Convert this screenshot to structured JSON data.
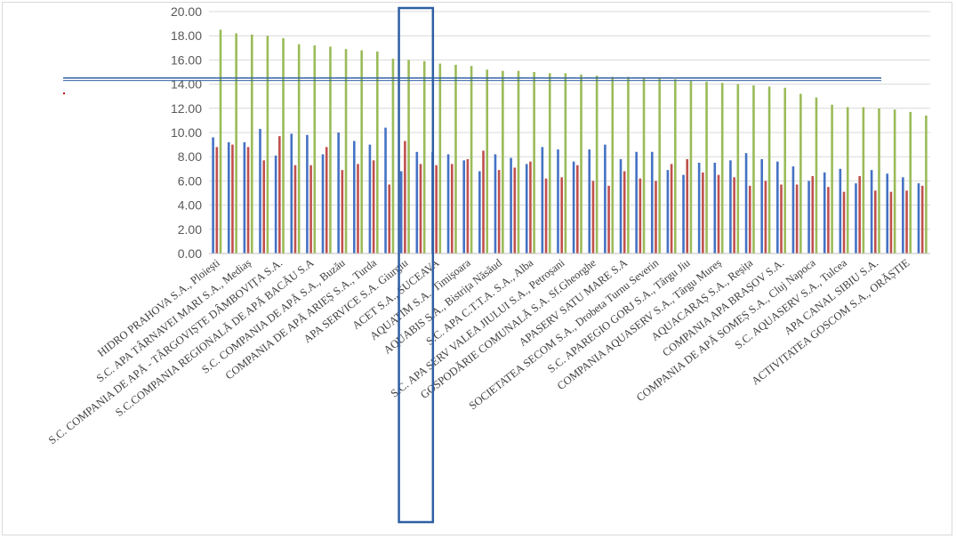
{
  "chart_data": {
    "type": "bar",
    "title": "",
    "xlabel": "",
    "ylabel": "",
    "ylim": [
      0,
      20
    ],
    "ytick_step": 2,
    "ytick_labels": [
      "0.00",
      "2.00",
      "4.00",
      "6.00",
      "8.00",
      "10.00",
      "12.00",
      "14.00",
      "16.00",
      "18.00",
      "20.00"
    ],
    "grid": true,
    "legend": "none",
    "categories": [
      "HIDRO PRAHOVA S.A., Ploiești",
      "",
      "S.C. APA TÂRNAVEI MARI S.A., Mediaș",
      "",
      "S.C. COMPANIA DE APĂ - TÂRGOVIȘTE DÂMBOVIȚA S.A.",
      "",
      "S.C.COMPANIA REGIONALĂ DE APĂ BACĂU S.A",
      "",
      "S.C. COMPANIA DE APĂ S.A., Buzău",
      "",
      "COMPANIA DE APĂ ARIEȘ S.A., Turda",
      "",
      "APA SERVICE S.A. Giurgiu",
      "",
      "ACET S.A., SUCEAVA",
      "",
      "AQUATIM S.A., Timișoara",
      "",
      "AQUABIS S.A., Bistrița Năsăud",
      "",
      "S.C. APA C.T.T.A. S.A., Alba",
      "",
      "S.C. APA SERV VALEA JIULUI S.A., Petroșani",
      "",
      "GOSPODĂRIE COMUNALĂ S.A. Sf.Gheorghe",
      "",
      "APASERV SATU MARE S.A",
      "",
      "SOCIETATEA SECOM S.A., Drobeta Turnu Severin",
      "",
      "S.C. APAREGIO GORJ S.A., Târgu Jiu",
      "",
      "COMPANIA AQUASERV S.A., Târgu Mureș",
      "",
      "AQUACARAȘ S.A., Reșița",
      "",
      "COMPANIA APA BRAȘOV S.A.",
      "",
      "COMPANIA DE APĂ SOMEȘ S.A., Cluj Napoca",
      "",
      "S.C. AQUASERV S.A., Tulcea",
      "",
      "APA CANAL SIBIU S.A.",
      "",
      "ACTIVITATEA GOSCOM S.A., ORĂȘTIE",
      ""
    ],
    "series": [
      {
        "color": "#4472c4",
        "values": [
          9.6,
          9.2,
          9.2,
          10.3,
          8.1,
          9.9,
          9.8,
          8.2,
          10.0,
          9.3,
          9.0,
          10.4,
          6.8,
          8.4,
          8.4,
          8.2,
          7.7,
          6.8,
          8.2,
          7.9,
          7.4,
          8.8,
          8.6,
          7.6,
          8.6,
          9.0,
          7.8,
          8.4,
          8.4,
          6.9,
          6.5,
          7.5,
          7.5,
          7.7,
          8.3,
          7.8,
          7.6,
          7.2,
          6.0,
          6.7,
          7.0,
          5.8,
          6.9,
          6.6,
          6.3,
          5.8
        ]
      },
      {
        "color": "#c0504d",
        "values": [
          8.8,
          9.0,
          8.8,
          7.7,
          9.7,
          7.3,
          7.3,
          8.8,
          6.9,
          7.4,
          7.7,
          5.7,
          9.3,
          7.4,
          7.3,
          7.4,
          7.8,
          8.5,
          6.9,
          7.1,
          7.6,
          6.2,
          6.3,
          7.3,
          6.0,
          5.6,
          6.8,
          6.2,
          6.0,
          7.4,
          7.8,
          6.7,
          6.5,
          6.3,
          5.6,
          6.0,
          5.7,
          5.7,
          6.4,
          5.5,
          5.1,
          6.4,
          5.2,
          5.1,
          5.2,
          5.6
        ]
      },
      {
        "color": "#9bbb59",
        "values": [
          18.5,
          18.2,
          18.1,
          18.0,
          17.8,
          17.3,
          17.2,
          17.1,
          16.9,
          16.8,
          16.7,
          16.1,
          16.0,
          15.9,
          15.7,
          15.6,
          15.5,
          15.2,
          15.1,
          15.1,
          15.0,
          14.9,
          14.9,
          14.8,
          14.7,
          14.6,
          14.6,
          14.5,
          14.5,
          14.4,
          14.3,
          14.2,
          14.1,
          14.0,
          13.9,
          13.8,
          13.7,
          13.2,
          12.9,
          12.3,
          12.1,
          12.1,
          12.0,
          11.9,
          11.7,
          11.4
        ]
      }
    ],
    "reference_line": {
      "y": 14.4,
      "color": "#3a66a8"
    },
    "highlight_box": {
      "color": "#2e5fa3",
      "categories": [
        12,
        13
      ]
    }
  }
}
